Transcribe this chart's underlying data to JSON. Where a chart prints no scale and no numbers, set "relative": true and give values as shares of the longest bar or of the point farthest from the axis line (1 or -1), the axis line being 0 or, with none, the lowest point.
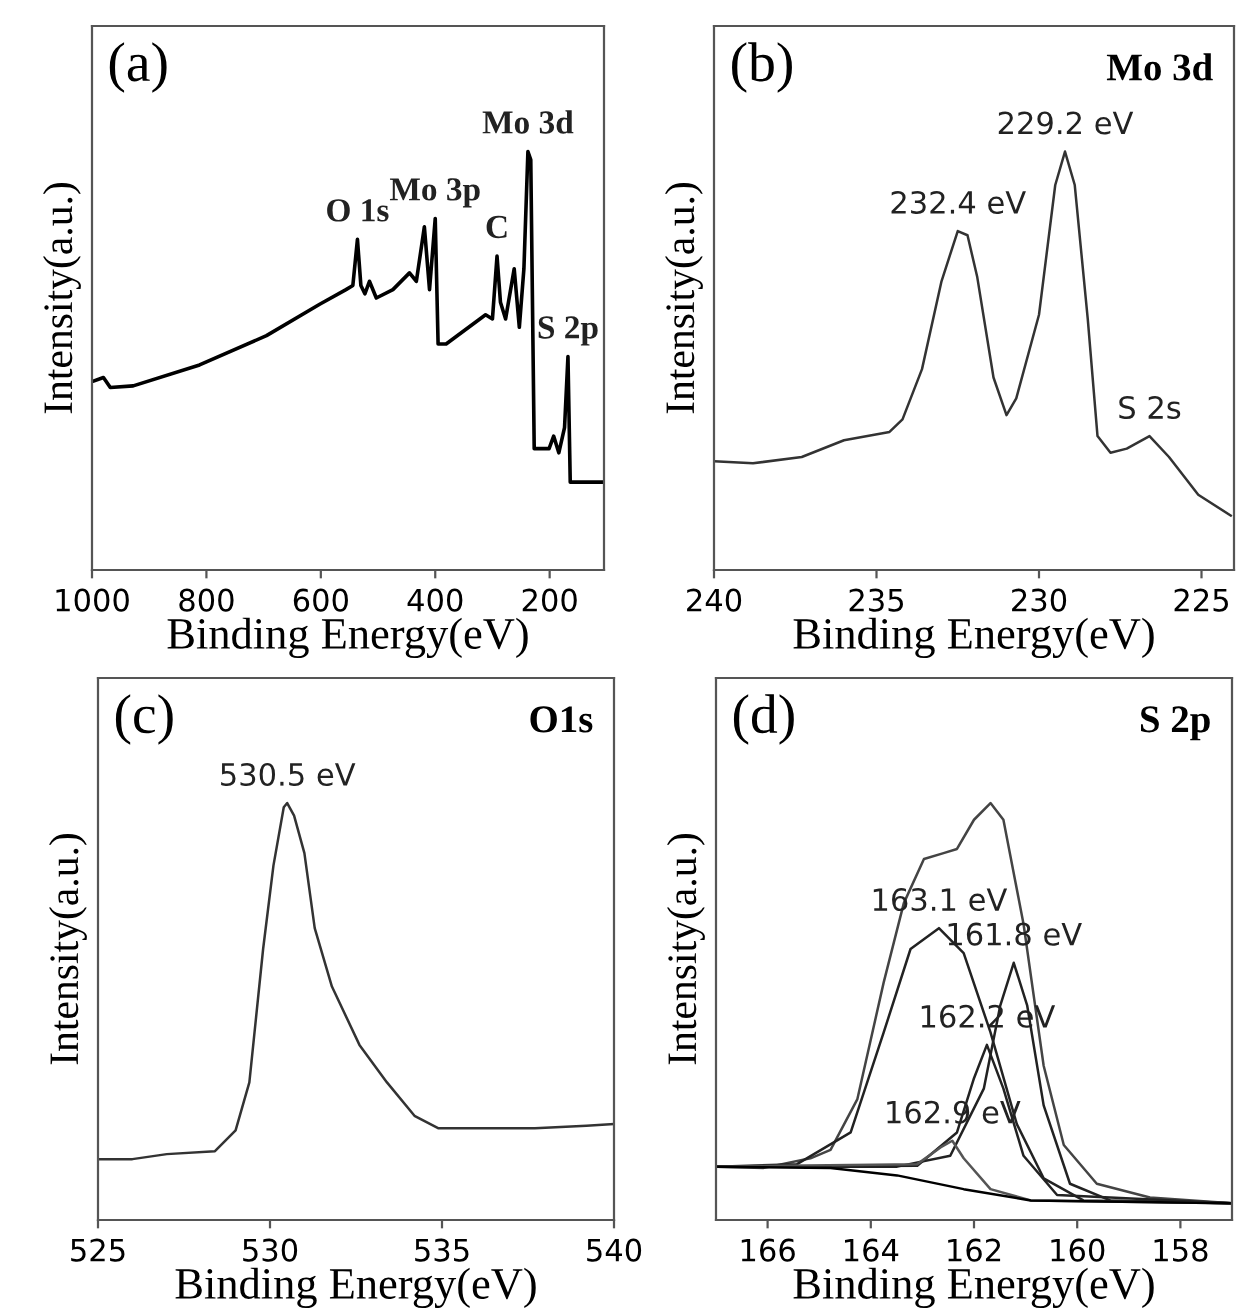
{
  "chart_data": [
    {
      "type": "line",
      "title": "(a)",
      "xlabel": "Binding Energy(eV)",
      "ylabel": "Intensity(a.u.)",
      "relative": true,
      "xlim": [
        1000,
        105
      ],
      "xticks": [
        1000,
        800,
        600,
        400,
        200
      ],
      "tick_labels": "x",
      "grid": false,
      "legend": false,
      "series": [
        {
          "color": "#000000",
          "x": [
            1000,
            980,
            968,
            928,
            812,
            695,
            602,
            556,
            544,
            536,
            530,
            523,
            515,
            503,
            474,
            445,
            433,
            419,
            410,
            400,
            395,
            381,
            312,
            300,
            292,
            286,
            277,
            262,
            253,
            245,
            238,
            233,
            227,
            201,
            193,
            184,
            174,
            168,
            164,
            106
          ],
          "values": [
            0.45,
            0.46,
            0.436,
            0.44,
            0.49,
            0.56,
            0.635,
            0.67,
            0.68,
            0.79,
            0.68,
            0.66,
            0.69,
            0.65,
            0.67,
            0.71,
            0.69,
            0.82,
            0.67,
            0.84,
            0.54,
            0.54,
            0.61,
            0.6,
            0.75,
            0.64,
            0.6,
            0.72,
            0.58,
            0.72,
            1.0,
            0.98,
            0.29,
            0.29,
            0.32,
            0.28,
            0.34,
            0.51,
            0.21,
            0.21
          ]
        }
      ],
      "annotations": [
        {
          "text": "O 1s",
          "x": 536,
          "y": 0.79
        },
        {
          "text": "Mo 3p",
          "x": 400,
          "y": 0.84
        },
        {
          "text": "C",
          "x": 292,
          "y": 0.75
        },
        {
          "text": "Mo 3d",
          "x": 238,
          "y": 1.0
        },
        {
          "text": "S 2p",
          "x": 168,
          "y": 0.51
        }
      ]
    },
    {
      "type": "line",
      "title": "(b)",
      "xlabel": "Binding Energy(eV)",
      "ylabel": "Intensity(a.u.)",
      "relative": true,
      "xlim": [
        240,
        224
      ],
      "xticks": [
        240,
        235,
        230,
        225
      ],
      "tick_labels": "x",
      "grid": false,
      "legend": false,
      "series": [
        {
          "color": "#333333",
          "x": [
            240,
            238.8,
            237.3,
            236.0,
            234.6,
            234.2,
            233.6,
            233.0,
            232.5,
            232.2,
            231.9,
            231.4,
            231.0,
            230.7,
            230.0,
            229.5,
            229.2,
            228.9,
            228.5,
            228.2,
            227.8,
            227.3,
            226.6,
            226.0,
            225.1,
            224.1
          ],
          "values": [
            0.26,
            0.255,
            0.27,
            0.31,
            0.33,
            0.36,
            0.48,
            0.69,
            0.81,
            0.8,
            0.7,
            0.46,
            0.37,
            0.41,
            0.61,
            0.92,
            1.0,
            0.92,
            0.6,
            0.32,
            0.28,
            0.29,
            0.32,
            0.27,
            0.18,
            0.13
          ]
        }
      ],
      "annotations": [
        "Mo 3d",
        {
          "text": "232.4 eV",
          "x": 232.5,
          "y": 0.81
        },
        {
          "text": "229.2 eV",
          "x": 229.2,
          "y": 1.0
        },
        {
          "text": "S 2s",
          "x": 226.6,
          "y": 0.32
        }
      ]
    },
    {
      "type": "line",
      "title": "(c)",
      "xlabel": "Binding Energy(eV)",
      "ylabel": "Intensity(a.u.)",
      "relative": true,
      "xlim": [
        525,
        540
      ],
      "xticks": [
        525,
        530,
        535,
        540
      ],
      "tick_labels": "x",
      "grid": false,
      "legend": false,
      "series": [
        {
          "color": "#333333",
          "x": [
            525,
            526,
            527,
            528.4,
            529.0,
            529.4,
            529.8,
            530.1,
            530.4,
            530.5,
            530.7,
            531.0,
            531.3,
            531.8,
            532.6,
            533.4,
            534.2,
            534.9,
            536.1,
            537.7,
            539.2,
            540
          ],
          "values": [
            0.146,
            0.146,
            0.158,
            0.165,
            0.215,
            0.33,
            0.65,
            0.85,
            0.99,
            1.0,
            0.97,
            0.88,
            0.7,
            0.56,
            0.42,
            0.33,
            0.25,
            0.22,
            0.22,
            0.22,
            0.226,
            0.23
          ]
        }
      ],
      "annotations": [
        "O1s",
        {
          "text": "530.5 eV",
          "x": 530.5,
          "y": 1.0
        }
      ]
    },
    {
      "type": "line",
      "title": "(d)",
      "xlabel": "Binding Energy(eV)",
      "ylabel": "Intensity(a.u.)",
      "relative": true,
      "xlim": [
        167,
        157
      ],
      "xticks": [
        166,
        164,
        162,
        160,
        158
      ],
      "tick_labels": "x",
      "grid": false,
      "legend": false,
      "series": [
        {
          "color": "#444444",
          "x": [
            167,
            166.07,
            165.17,
            164.78,
            164.26,
            163.75,
            163.36,
            162.97,
            162.59,
            162.33,
            162.0,
            161.68,
            161.43,
            161.04,
            160.65,
            160.26,
            159.62,
            158.59,
            157.0
          ],
          "values": [
            0.128,
            0.125,
            0.148,
            0.168,
            0.29,
            0.57,
            0.76,
            0.866,
            0.88,
            0.89,
            0.96,
            1.0,
            0.96,
            0.71,
            0.37,
            0.18,
            0.087,
            0.054,
            0.04
          ]
        },
        {
          "color": "#222222",
          "x": [
            167,
            165.43,
            164.39,
            163.75,
            163.23,
            162.68,
            162.2,
            161.68,
            161.17,
            160.65,
            159.88,
            157.0
          ],
          "values": [
            0.128,
            0.134,
            0.21,
            0.45,
            0.65,
            0.7,
            0.64,
            0.45,
            0.23,
            0.1,
            0.047,
            0.04
          ]
        },
        {
          "color": "#222222",
          "x": [
            167,
            163.49,
            162.46,
            161.81,
            161.49,
            161.23,
            160.97,
            160.65,
            160.14,
            159.36,
            157.0
          ],
          "values": [
            0.128,
            0.128,
            0.154,
            0.315,
            0.515,
            0.617,
            0.515,
            0.275,
            0.087,
            0.047,
            0.04
          ]
        },
        {
          "color": "#222222",
          "x": [
            167,
            163.1,
            162.33,
            162.0,
            161.75,
            161.43,
            161.04,
            160.39,
            157.0
          ],
          "values": [
            0.128,
            0.13,
            0.21,
            0.34,
            0.42,
            0.315,
            0.154,
            0.06,
            0.04
          ]
        },
        {
          "color": "#555555",
          "x": [
            167,
            163.1,
            162.65,
            162.42,
            162.2,
            161.68,
            160.9,
            157.0
          ],
          "values": [
            0.128,
            0.134,
            0.174,
            0.19,
            0.148,
            0.074,
            0.047,
            0.04
          ]
        },
        {
          "color": "#000000",
          "x": [
            167,
            164.78,
            163.49,
            162.2,
            160.9,
            157.0
          ],
          "values": [
            0.128,
            0.125,
            0.107,
            0.074,
            0.047,
            0.04
          ]
        }
      ],
      "annotations": [
        "S 2p",
        {
          "text": "163.1 eV",
          "x": 162.68,
          "y": 0.7
        },
        {
          "text": "161.8 eV",
          "x": 161.23,
          "y": 0.617
        },
        {
          "text": "162.2 eV",
          "x": 161.75,
          "y": 0.42
        },
        {
          "text": "162.9 eV",
          "x": 162.42,
          "y": 0.19
        }
      ]
    }
  ]
}
